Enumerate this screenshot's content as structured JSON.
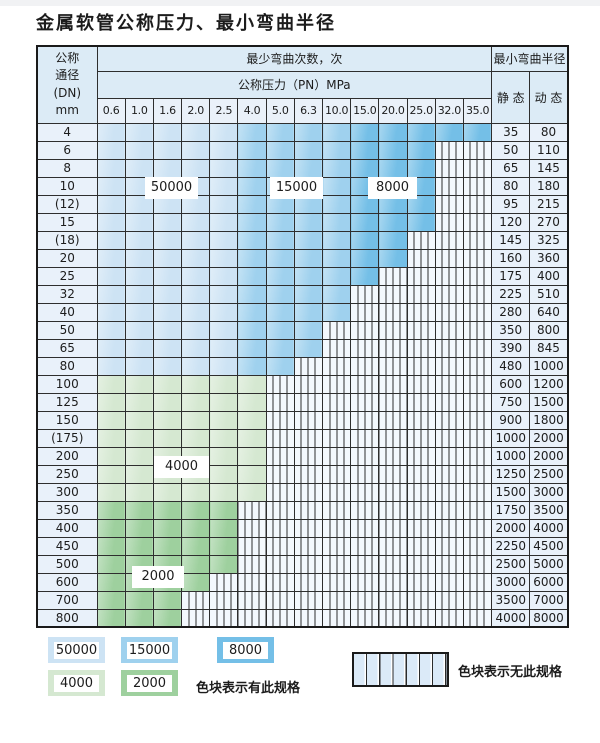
{
  "title": "金属软管公称压力、最小弯曲半径",
  "header": {
    "dn_lines": [
      "公称",
      "通径",
      "(DN)",
      "mm"
    ],
    "bend_cycles": "最少弯曲次数，次",
    "pressure": "公称压力（PN）MPa",
    "radius": "最小弯曲半径",
    "static_label": "静 态",
    "dynamic_label": "动 态",
    "pressure_cols": [
      "0.6",
      "1.0",
      "1.6",
      "2.0",
      "2.5",
      "4.0",
      "5.0",
      "6.3",
      "10.0",
      "15.0",
      "20.0",
      "25.0",
      "32.0",
      "35.0"
    ]
  },
  "colors": {
    "z0": "#cde3f4",
    "z1": "#9fd1ee",
    "z2": "#74bfe7",
    "g4": "#d5e8d1",
    "g2": "#9ed09e"
  },
  "zones": {
    "blue_zone_by_col": [
      0,
      0,
      0,
      0,
      0,
      1,
      1,
      1,
      1,
      2,
      2,
      2,
      2,
      2
    ],
    "labels": [
      {
        "text": "50000"
      },
      {
        "text": "15000"
      },
      {
        "text": "8000"
      },
      {
        "text": "4000"
      },
      {
        "text": "2000"
      }
    ]
  },
  "rows": [
    {
      "dn": "4",
      "colored": 14,
      "palette": "blue",
      "static": "35",
      "dynamic": "80"
    },
    {
      "dn": "6",
      "colored": 12,
      "palette": "blue",
      "static": "50",
      "dynamic": "110"
    },
    {
      "dn": "8",
      "colored": 12,
      "palette": "blue",
      "static": "65",
      "dynamic": "145"
    },
    {
      "dn": "10",
      "colored": 12,
      "palette": "blue",
      "static": "80",
      "dynamic": "180"
    },
    {
      "dn": "(12)",
      "colored": 12,
      "palette": "blue",
      "static": "95",
      "dynamic": "215"
    },
    {
      "dn": "15",
      "colored": 12,
      "palette": "blue",
      "static": "120",
      "dynamic": "270"
    },
    {
      "dn": "(18)",
      "colored": 11,
      "palette": "blue",
      "static": "145",
      "dynamic": "325"
    },
    {
      "dn": "20",
      "colored": 11,
      "palette": "blue",
      "static": "160",
      "dynamic": "360"
    },
    {
      "dn": "25",
      "colored": 10,
      "palette": "blue",
      "static": "175",
      "dynamic": "400"
    },
    {
      "dn": "32",
      "colored": 9,
      "palette": "blue",
      "static": "225",
      "dynamic": "510"
    },
    {
      "dn": "40",
      "colored": 9,
      "palette": "blue",
      "static": "280",
      "dynamic": "640"
    },
    {
      "dn": "50",
      "colored": 8,
      "palette": "blue",
      "static": "350",
      "dynamic": "800"
    },
    {
      "dn": "65",
      "colored": 8,
      "palette": "blue",
      "static": "390",
      "dynamic": "845"
    },
    {
      "dn": "80",
      "colored": 7,
      "palette": "blue",
      "static": "480",
      "dynamic": "1000"
    },
    {
      "dn": "100",
      "colored": 6,
      "palette": "g4",
      "static": "600",
      "dynamic": "1200"
    },
    {
      "dn": "125",
      "colored": 6,
      "palette": "g4",
      "static": "750",
      "dynamic": "1500"
    },
    {
      "dn": "150",
      "colored": 6,
      "palette": "g4",
      "static": "900",
      "dynamic": "1800"
    },
    {
      "dn": "(175)",
      "colored": 6,
      "palette": "g4",
      "static": "1000",
      "dynamic": "2000"
    },
    {
      "dn": "200",
      "colored": 6,
      "palette": "g4",
      "static": "1000",
      "dynamic": "2000"
    },
    {
      "dn": "250",
      "colored": 6,
      "palette": "g4",
      "static": "1250",
      "dynamic": "2500"
    },
    {
      "dn": "300",
      "colored": 6,
      "palette": "g4",
      "static": "1500",
      "dynamic": "3000"
    },
    {
      "dn": "350",
      "colored": 5,
      "palette": "g2",
      "static": "1750",
      "dynamic": "3500"
    },
    {
      "dn": "400",
      "colored": 5,
      "palette": "g2",
      "static": "2000",
      "dynamic": "4000"
    },
    {
      "dn": "450",
      "colored": 5,
      "palette": "g2",
      "static": "2250",
      "dynamic": "4500"
    },
    {
      "dn": "500",
      "colored": 5,
      "palette": "g2",
      "static": "2500",
      "dynamic": "5000"
    },
    {
      "dn": "600",
      "colored": 4,
      "palette": "g2",
      "static": "3000",
      "dynamic": "6000"
    },
    {
      "dn": "700",
      "colored": 3,
      "palette": "g2",
      "static": "3500",
      "dynamic": "7000"
    },
    {
      "dn": "800",
      "colored": 3,
      "palette": "g2",
      "static": "4000",
      "dynamic": "8000"
    }
  ],
  "legend": {
    "items": [
      {
        "label": "50000",
        "color": "z0"
      },
      {
        "label": "15000",
        "color": "z1"
      },
      {
        "label": "8000",
        "color": "z2"
      },
      {
        "label": "4000",
        "color": "g4"
      },
      {
        "label": "2000",
        "color": "g2"
      }
    ],
    "note_present": "色块表示有此规格",
    "note_absent": "色块表示无此规格"
  }
}
